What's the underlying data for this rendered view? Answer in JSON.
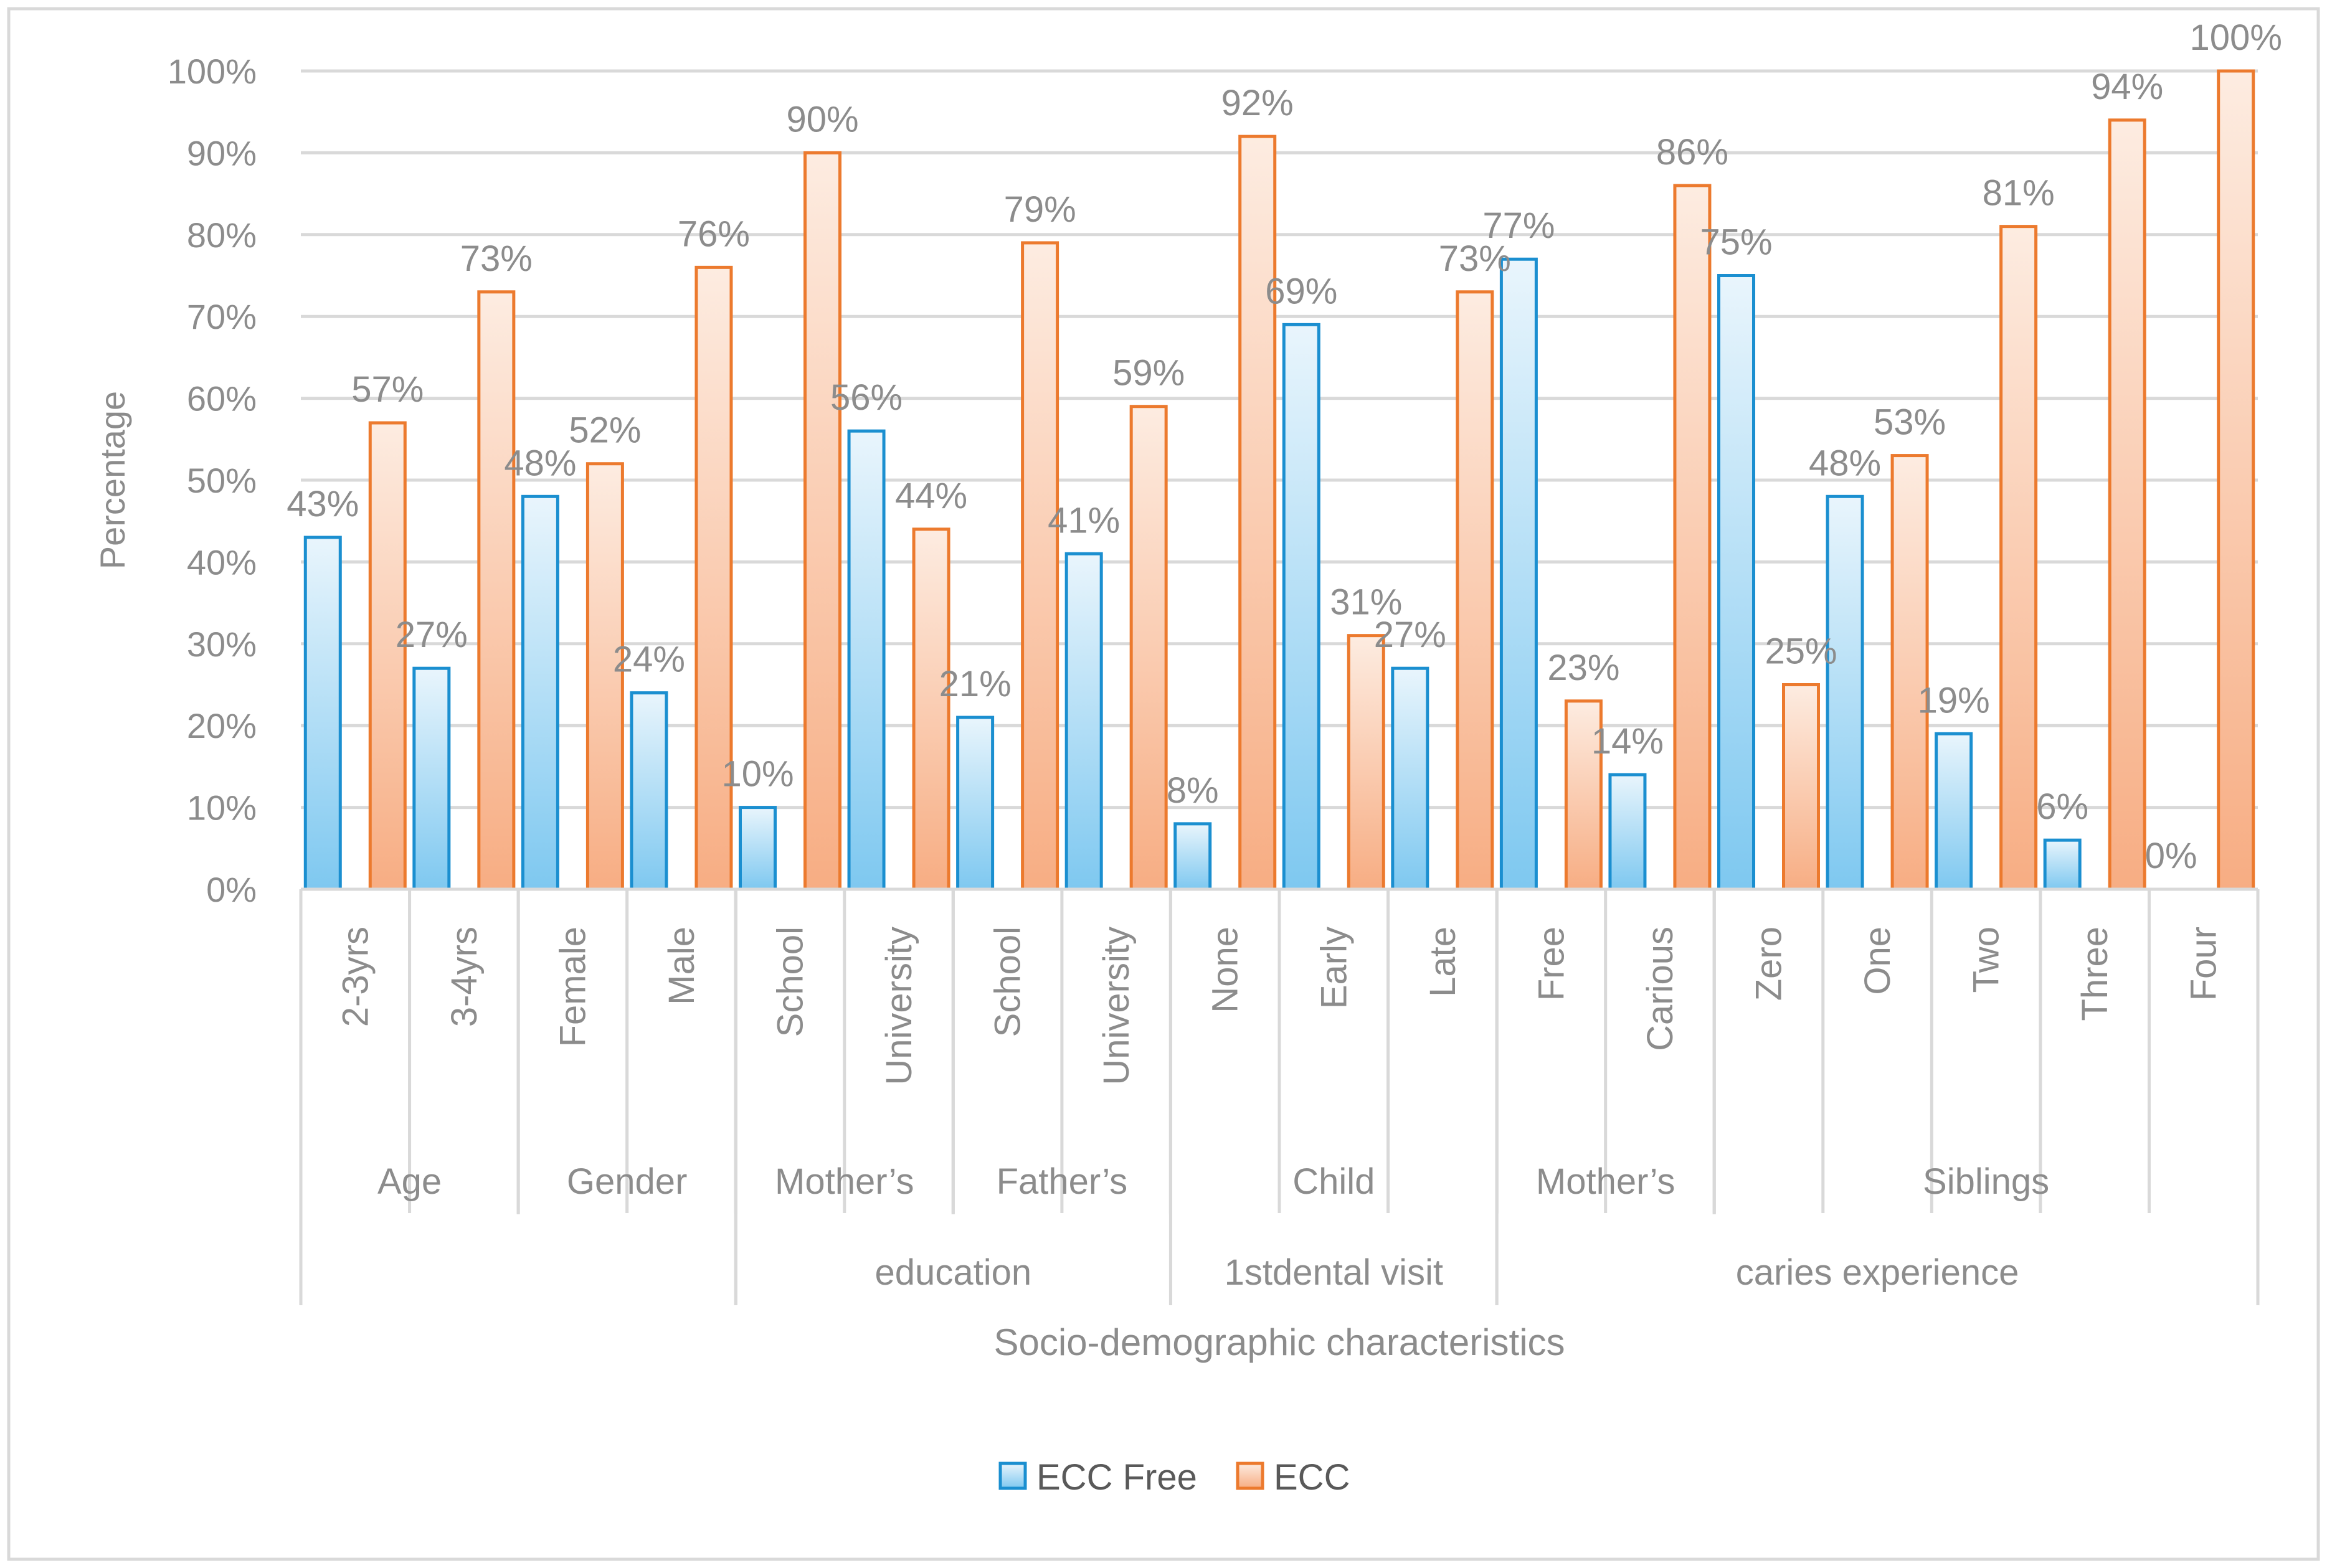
{
  "chart_data": {
    "type": "bar",
    "title": "",
    "xlabel": "Socio-demographic characteristics",
    "ylabel": "Percentage",
    "ylim": [
      0,
      100
    ],
    "yticks": [
      "0%",
      "10%",
      "20%",
      "30%",
      "40%",
      "50%",
      "60%",
      "70%",
      "80%",
      "90%",
      "100%"
    ],
    "grid": true,
    "legend_position": "bottom",
    "categories": [
      "2-3yrs",
      "3-4yrs",
      "Female",
      "Male",
      "School",
      "University",
      "School",
      "University",
      "None",
      "Early",
      "Late",
      "Free",
      "Carious",
      "Zero",
      "One",
      "Two",
      "Three",
      "Four"
    ],
    "groups": [
      {
        "name": "Age",
        "subname": ""
      },
      {
        "name": "Gender",
        "subname": ""
      },
      {
        "name": "Mother’s",
        "subname": "education"
      },
      {
        "name": "Father’s",
        "subname": ""
      },
      {
        "name": "Child",
        "subname": "1stdental visit"
      },
      {
        "name": "Mother’s",
        "subname": "caries experience"
      },
      {
        "name": "Siblings",
        "subname": ""
      }
    ],
    "series": [
      {
        "name": "ECC Free",
        "values": [
          43,
          27,
          48,
          24,
          10,
          56,
          21,
          41,
          8,
          69,
          27,
          77,
          14,
          75,
          48,
          19,
          6,
          0
        ],
        "labels": [
          "43%",
          "27%",
          "48%",
          "24%",
          "10%",
          "56%",
          "21%",
          "41%",
          "8%",
          "69%",
          "27%",
          "77%",
          "14%",
          "75%",
          "48%",
          "19%",
          "6%",
          "0%"
        ],
        "color": "#1b8fd0"
      },
      {
        "name": "ECC",
        "values": [
          57,
          73,
          52,
          76,
          90,
          44,
          79,
          59,
          92,
          31,
          73,
          23,
          86,
          25,
          53,
          81,
          94,
          100
        ],
        "labels": [
          "57%",
          "73%",
          "52%",
          "76%",
          "90%",
          "44%",
          "79%",
          "59%",
          "92%",
          "31%",
          "73%",
          "23%",
          "86%",
          "25%",
          "53%",
          "81%",
          "94%",
          "100%"
        ],
        "color": "#ec7a2e"
      }
    ]
  }
}
